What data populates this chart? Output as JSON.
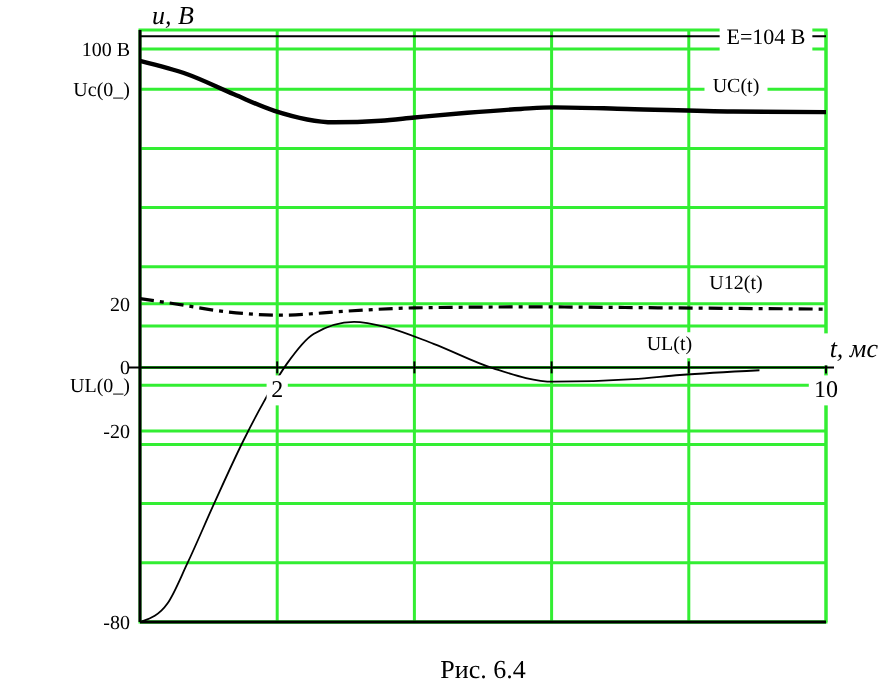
{
  "chart_data": {
    "type": "line",
    "ylabel": "u, В",
    "xlabel": "t, мс",
    "annotations": [
      "Рис. 6.4"
    ],
    "xlim": [
      0,
      10
    ],
    "xticks": [
      2,
      {
        "value": 4,
        "label": null
      },
      {
        "value": 6,
        "label": null
      },
      {
        "value": 8,
        "label": null
      },
      10
    ],
    "ylim": [
      -80,
      106
    ],
    "yticks": [
      {
        "value": -80,
        "label": "-80"
      },
      {
        "value": -61.4,
        "label": null
      },
      {
        "value": -42.8,
        "label": null
      },
      {
        "value": -24.2,
        "label": null
      },
      {
        "value": -20,
        "label": "-20"
      },
      {
        "value": -5.6,
        "label": "UL(0_)"
      },
      {
        "value": 0,
        "label": "0"
      },
      {
        "value": 13,
        "label": null
      },
      {
        "value": 20,
        "label": "20"
      },
      {
        "value": 31.6,
        "label": null
      },
      {
        "value": 50.2,
        "label": null
      },
      {
        "value": 68.8,
        "label": null
      },
      {
        "value": 87.4,
        "label": "Uc(0_)"
      },
      {
        "value": 100,
        "label": "100 В"
      }
    ],
    "grid": true,
    "line_style": "solid",
    "ref_lines": [
      {
        "axis": "y",
        "value": 104,
        "label": "E=104 В",
        "color": "#000000"
      }
    ],
    "series": [
      {
        "name": "UC(t)",
        "color": "#000000",
        "x": [
          0,
          0.69,
          1.37,
          1.96,
          2.83,
          3.51,
          4.0,
          4.77,
          5.55,
          6.03,
          7.1,
          8.65,
          10
        ],
        "values": [
          96.3,
          92.1,
          85.8,
          80.6,
          77.0,
          77.5,
          78.5,
          80,
          81.2,
          81.7,
          81.2,
          80.4,
          80.2
        ]
      },
      {
        "name": "U12(t)",
        "color": "#000000",
        "line_style": "dashed",
        "x": [
          0,
          0.5,
          1.28,
          2.06,
          3.03,
          4.0,
          5.74,
          7.68,
          10
        ],
        "values": [
          21.6,
          20,
          17.4,
          16.4,
          17.7,
          18.7,
          19,
          18.7,
          18.3
        ]
      },
      {
        "name": "UL(t)",
        "color": "#000000",
        "x": [
          0.03,
          0.4,
          0.69,
          1.08,
          1.51,
          1.8,
          2.14,
          2.53,
          3.12,
          3.6,
          4.28,
          5.15,
          6.03,
          7.19,
          7.87,
          9.03
        ],
        "values": [
          -79.8,
          -74.2,
          -61.6,
          -42.8,
          -22.9,
          -11,
          1.1,
          10.5,
          14.3,
          12.6,
          7.4,
          -0.3,
          -4.5,
          -3.7,
          -2.4,
          -0.9
        ]
      }
    ]
  }
}
